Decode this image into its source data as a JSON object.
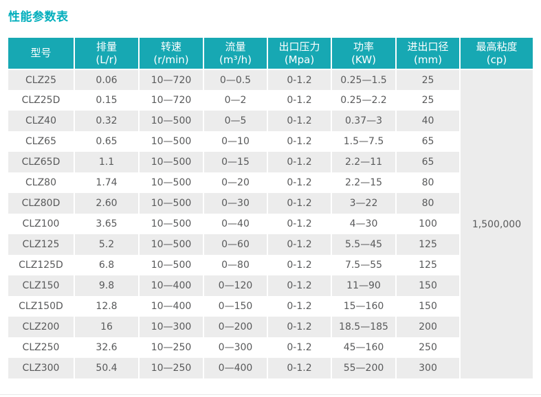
{
  "page": {
    "title": "性能参数表"
  },
  "colors": {
    "title_teal": "#00aebc",
    "header_teal": "#17a8b3",
    "row_alt_gray": "#ececec",
    "body_text_gray": "#58595a",
    "header_text": "#ffffff"
  },
  "table": {
    "headers": [
      {
        "name": "型号",
        "unit": ""
      },
      {
        "name": "排量",
        "unit": "(L/r)"
      },
      {
        "name": "转速",
        "unit": "(r/min)"
      },
      {
        "name": "流量",
        "unit": "(m³/h)"
      },
      {
        "name": "出口压力",
        "unit": "(Mpa)"
      },
      {
        "name": "功率",
        "unit": "(KW)"
      },
      {
        "name": "进出口径",
        "unit": "(mm)"
      },
      {
        "name": "最高粘度",
        "unit": "(cp)"
      }
    ],
    "max_viscosity_value": "1,500,000",
    "rows": [
      [
        "CLZ25",
        "0.06",
        "10—720",
        "0—0.5",
        "0-1.2",
        "0.25—1.5",
        "25"
      ],
      [
        "CLZ25D",
        "0.15",
        "10—720",
        "0—2",
        "0-1.2",
        "0.25—2.2",
        "25"
      ],
      [
        "CLZ40",
        "0.32",
        "10—500",
        "0—5",
        "0-1.2",
        "0.37—3",
        "40"
      ],
      [
        "CLZ65",
        "0.65",
        "10—500",
        "0—10",
        "0-1.2",
        "1.5—7.5",
        "65"
      ],
      [
        "CLZ65D",
        "1.1",
        "10—500",
        "0—15",
        "0-1.2",
        "2.2—11",
        "65"
      ],
      [
        "CLZ80",
        "1.74",
        "10—500",
        "0—20",
        "0-1.2",
        "2.2—15",
        "80"
      ],
      [
        "CLZ80D",
        "2.60",
        "10—500",
        "0—30",
        "0-1.2",
        "3—22",
        "80"
      ],
      [
        "CLZ100",
        "3.65",
        "10—500",
        "0—40",
        "0-1.2",
        "4—30",
        "100"
      ],
      [
        "CLZ125",
        "5.2",
        "10—500",
        "0—60",
        "0-1.2",
        "5.5—45",
        "125"
      ],
      [
        "CLZ125D",
        "6.8",
        "10—500",
        "0—80",
        "0-1.2",
        "7.5—55",
        "125"
      ],
      [
        "CLZ150",
        "9.8",
        "10—400",
        "0—120",
        "0-1.2",
        "11—90",
        "150"
      ],
      [
        "CLZ150D",
        "12.8",
        "10—400",
        "0—150",
        "0-1.2",
        "15—160",
        "150"
      ],
      [
        "CLZ200",
        "16",
        "10—300",
        "0—200",
        "0-1.2",
        "18.5—185",
        "200"
      ],
      [
        "CLZ250",
        "32.6",
        "10—250",
        "0—300",
        "0-1.2",
        "45—160",
        "250"
      ],
      [
        "CLZ300",
        "50.4",
        "10—250",
        "0—400",
        "0-1.2",
        "55—200",
        "300"
      ]
    ]
  }
}
